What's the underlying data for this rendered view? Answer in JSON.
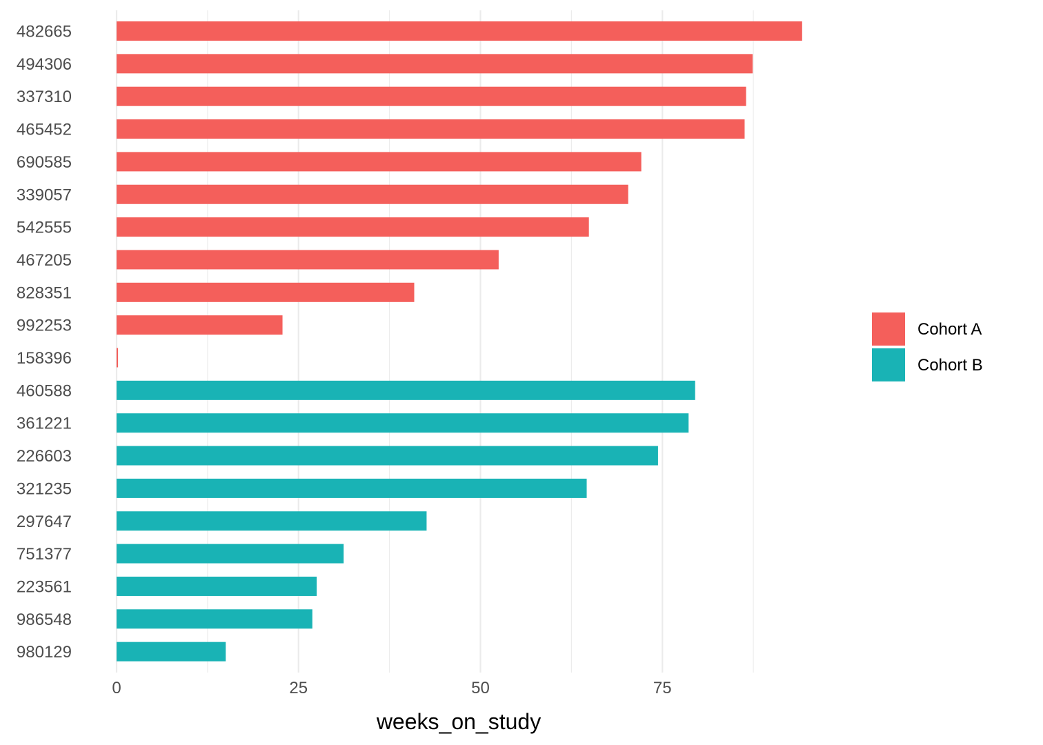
{
  "chart_data": {
    "type": "bar",
    "orientation": "horizontal",
    "title": "",
    "xlabel": "weeks_on_study",
    "ylabel": "",
    "xlim": [
      0,
      94
    ],
    "x_ticks": [
      0,
      25,
      50,
      75
    ],
    "grid": true,
    "legend_position": "right",
    "series": [
      {
        "name": "Cohort A",
        "color": "#F45F5B"
      },
      {
        "name": "Cohort B",
        "color": "#19B3B5"
      }
    ],
    "categories": [
      "482665",
      "494306",
      "337310",
      "465452",
      "690585",
      "339057",
      "542555",
      "467205",
      "828351",
      "992253",
      "158396",
      "460588",
      "361221",
      "226603",
      "321235",
      "297647",
      "751377",
      "223561",
      "986548",
      "980129"
    ],
    "values": [
      94.2,
      87.4,
      86.5,
      86.3,
      72.1,
      70.3,
      64.9,
      52.5,
      40.9,
      22.8,
      0.2,
      79.5,
      78.6,
      74.4,
      64.6,
      42.6,
      31.2,
      27.5,
      26.9,
      15.0
    ],
    "groups": [
      "Cohort A",
      "Cohort A",
      "Cohort A",
      "Cohort A",
      "Cohort A",
      "Cohort A",
      "Cohort A",
      "Cohort A",
      "Cohort A",
      "Cohort A",
      "Cohort A",
      "Cohort B",
      "Cohort B",
      "Cohort B",
      "Cohort B",
      "Cohort B",
      "Cohort B",
      "Cohort B",
      "Cohort B",
      "Cohort B"
    ]
  }
}
